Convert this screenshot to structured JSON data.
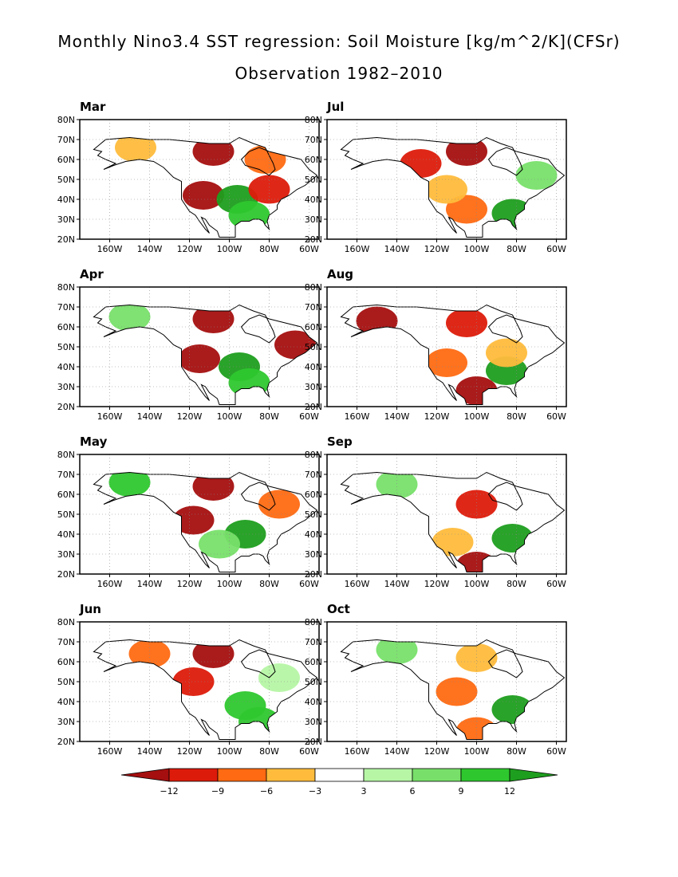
{
  "title": "Monthly Nino3.4 SST regression: Soil Moisture [kg/m^2/K](CFSr)",
  "subtitle": "Observation 1982–2010",
  "chart_data": {
    "type": "heatmap",
    "projection": "lat-lon map, North America",
    "lon_range": [
      -175,
      -55
    ],
    "lat_range": [
      20,
      80
    ],
    "x_ticks": [
      "160W",
      "140W",
      "120W",
      "100W",
      "80W",
      "60W"
    ],
    "x_tick_values": [
      -160,
      -140,
      -120,
      -100,
      -80,
      -60
    ],
    "y_ticks": [
      "20N",
      "30N",
      "40N",
      "50N",
      "60N",
      "70N",
      "80N"
    ],
    "y_tick_values": [
      20,
      30,
      40,
      50,
      60,
      70,
      80
    ],
    "grid": true,
    "panels": [
      {
        "label": "Mar",
        "anomalies": [
          {
            "lon": -113,
            "lat": 42,
            "value": -12
          },
          {
            "lon": -108,
            "lat": 64,
            "value": -12
          },
          {
            "lon": -96,
            "lat": 40,
            "value": 12
          },
          {
            "lon": -90,
            "lat": 32,
            "value": 9
          },
          {
            "lon": -80,
            "lat": 45,
            "value": -9
          },
          {
            "lon": -147,
            "lat": 66,
            "value": -3
          },
          {
            "lon": -82,
            "lat": 60,
            "value": -6
          }
        ]
      },
      {
        "label": "Jul",
        "anomalies": [
          {
            "lon": -105,
            "lat": 64,
            "value": -12
          },
          {
            "lon": -128,
            "lat": 58,
            "value": -9
          },
          {
            "lon": -105,
            "lat": 35,
            "value": -6
          },
          {
            "lon": -82,
            "lat": 33,
            "value": 12
          },
          {
            "lon": -115,
            "lat": 45,
            "value": -3
          },
          {
            "lon": -70,
            "lat": 52,
            "value": 6
          }
        ]
      },
      {
        "label": "Apr",
        "anomalies": [
          {
            "lon": -108,
            "lat": 64,
            "value": -12
          },
          {
            "lon": -115,
            "lat": 44,
            "value": -12
          },
          {
            "lon": -67,
            "lat": 51,
            "value": -12
          },
          {
            "lon": -95,
            "lat": 40,
            "value": 12
          },
          {
            "lon": -90,
            "lat": 32,
            "value": 9
          },
          {
            "lon": -150,
            "lat": 65,
            "value": 6
          }
        ]
      },
      {
        "label": "Aug",
        "anomalies": [
          {
            "lon": -105,
            "lat": 62,
            "value": -9
          },
          {
            "lon": -150,
            "lat": 63,
            "value": -12
          },
          {
            "lon": -100,
            "lat": 28,
            "value": -12
          },
          {
            "lon": -115,
            "lat": 42,
            "value": -6
          },
          {
            "lon": -85,
            "lat": 38,
            "value": 12
          },
          {
            "lon": -85,
            "lat": 47,
            "value": -3
          }
        ]
      },
      {
        "label": "May",
        "anomalies": [
          {
            "lon": -108,
            "lat": 64,
            "value": -12
          },
          {
            "lon": -118,
            "lat": 47,
            "value": -12
          },
          {
            "lon": -92,
            "lat": 40,
            "value": 12
          },
          {
            "lon": -150,
            "lat": 66,
            "value": 9
          },
          {
            "lon": -105,
            "lat": 35,
            "value": 6
          },
          {
            "lon": -75,
            "lat": 55,
            "value": -6
          }
        ]
      },
      {
        "label": "Sep",
        "anomalies": [
          {
            "lon": -100,
            "lat": 55,
            "value": -9
          },
          {
            "lon": -100,
            "lat": 24,
            "value": -12
          },
          {
            "lon": -82,
            "lat": 38,
            "value": 12
          },
          {
            "lon": -140,
            "lat": 65,
            "value": 6
          },
          {
            "lon": -112,
            "lat": 36,
            "value": -3
          }
        ]
      },
      {
        "label": "Jun",
        "anomalies": [
          {
            "lon": -108,
            "lat": 64,
            "value": -12
          },
          {
            "lon": -118,
            "lat": 50,
            "value": -9
          },
          {
            "lon": -92,
            "lat": 38,
            "value": 9
          },
          {
            "lon": -85,
            "lat": 30,
            "value": 9
          },
          {
            "lon": -140,
            "lat": 64,
            "value": -6
          },
          {
            "lon": -75,
            "lat": 52,
            "value": 3
          }
        ]
      },
      {
        "label": "Oct",
        "anomalies": [
          {
            "lon": -140,
            "lat": 66,
            "value": 6
          },
          {
            "lon": -110,
            "lat": 45,
            "value": -6
          },
          {
            "lon": -82,
            "lat": 36,
            "value": 12
          },
          {
            "lon": -100,
            "lat": 62,
            "value": -3
          },
          {
            "lon": -100,
            "lat": 25,
            "value": -6
          }
        ]
      }
    ],
    "colorbar": {
      "tick_labels": [
        "−12",
        "−9",
        "−6",
        "−3",
        "3",
        "6",
        "9",
        "12"
      ],
      "tick_values": [
        -12,
        -9,
        -6,
        -3,
        3,
        6,
        9,
        12
      ],
      "colors": [
        "#a50f0f",
        "#dd1b0b",
        "#ff6a12",
        "#ffbc3c",
        "#ffffff",
        "#b6f6a5",
        "#78e06a",
        "#2ec82e",
        "#1e9e1e"
      ]
    }
  }
}
